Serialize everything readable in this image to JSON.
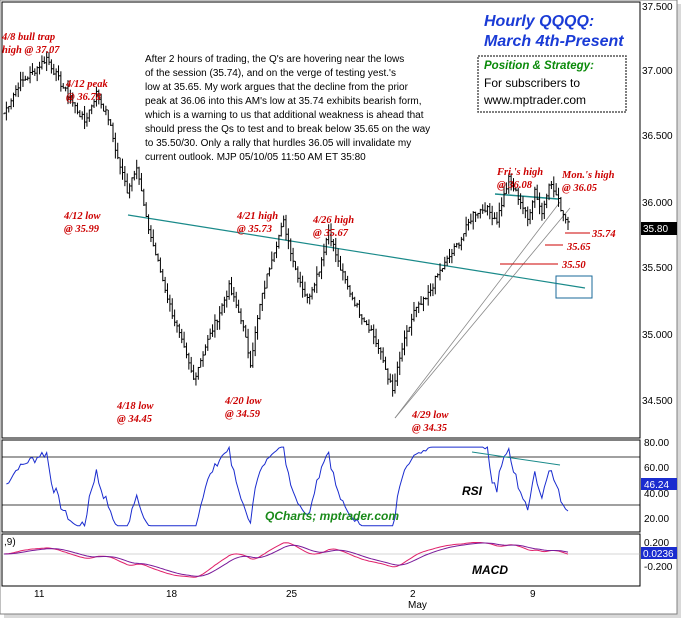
{
  "chart_data": {
    "type": "candlestick",
    "title": "Hourly QQQQ:",
    "subtitle": "March 4th-Present",
    "position_box": {
      "heading": "Position & Strategy:",
      "line1": "For subscribers to",
      "line2": "www.mptrader.com"
    },
    "commentary": [
      "After 2 hours of trading, the Q's are hovering near the lows",
      "of the session (35.74), and on the verge of testing yest.'s",
      "low at 35.65. My work argues that the decline from the prior",
      "peak at 36.06 into this AM's low at 35.74 exhibits bearish form,",
      "which is a warning to us that additional weakness is ahead that",
      "should press the Qs to test and to break below 35.65 on the way",
      "to 35.50/30. Only a rally that hurdles 36.05 will invalidate my",
      "current outlook.  MJP 05/10/05 11:50 AM ET 35:80"
    ],
    "y_ticks": [
      "37.500",
      "37.000",
      "36.500",
      "36.000",
      "35.500",
      "35.000",
      "34.500"
    ],
    "ylim": [
      34.25,
      37.5
    ],
    "x_ticks": [
      "11",
      "18",
      "25",
      "2",
      "9"
    ],
    "x_month_label": "May",
    "last_price_label": "35.80",
    "price_path": [
      [
        0,
        36.62
      ],
      [
        6,
        36.85
      ],
      [
        12,
        36.95
      ],
      [
        18,
        37.07
      ],
      [
        24,
        36.86
      ],
      [
        29,
        36.7
      ],
      [
        34,
        36.55
      ],
      [
        39,
        36.78
      ],
      [
        44,
        36.58
      ],
      [
        48,
        36.25
      ],
      [
        52,
        35.99
      ],
      [
        56,
        36.2
      ],
      [
        60,
        35.75
      ],
      [
        65,
        35.4
      ],
      [
        70,
        35.05
      ],
      [
        75,
        34.75
      ],
      [
        80,
        34.45
      ],
      [
        85,
        34.72
      ],
      [
        90,
        34.95
      ],
      [
        95,
        35.2
      ],
      [
        100,
        34.95
      ],
      [
        104,
        34.59
      ],
      [
        108,
        35.05
      ],
      [
        113,
        35.45
      ],
      [
        118,
        35.73
      ],
      [
        123,
        35.35
      ],
      [
        128,
        35.1
      ],
      [
        133,
        35.35
      ],
      [
        137,
        35.67
      ],
      [
        141,
        35.4
      ],
      [
        145,
        35.2
      ],
      [
        150,
        35.0
      ],
      [
        155,
        34.85
      ],
      [
        160,
        34.6
      ],
      [
        164,
        34.35
      ],
      [
        168,
        34.7
      ],
      [
        173,
        35.0
      ],
      [
        178,
        35.1
      ],
      [
        183,
        35.3
      ],
      [
        188,
        35.45
      ],
      [
        193,
        35.6
      ],
      [
        198,
        35.8
      ],
      [
        203,
        35.85
      ],
      [
        208,
        35.75
      ],
      [
        213,
        36.08
      ],
      [
        218,
        35.9
      ],
      [
        221,
        35.75
      ],
      [
        224,
        36.0
      ],
      [
        227,
        35.8
      ],
      [
        230,
        36.06
      ],
      [
        233,
        35.95
      ],
      [
        236,
        35.8
      ],
      [
        238,
        35.74
      ]
    ],
    "annotations": [
      {
        "text": "4/8 bull trap",
        "text2": "high @ 37.07"
      },
      {
        "text": "4/12 peak",
        "text2": "@ 36.78"
      },
      {
        "text": "4/12 low",
        "text2": "@ 35.99"
      },
      {
        "text": "4/18 low",
        "text2": "@ 34.45"
      },
      {
        "text": "4/20 low",
        "text2": "@ 34.59"
      },
      {
        "text": "4/21 high",
        "text2": "@ 35.73"
      },
      {
        "text": "4/26 high",
        "text2": "@ 35.67"
      },
      {
        "text": "4/29 low",
        "text2": "@ 34.35"
      },
      {
        "text": "Fri.'s high",
        "text2": "@ 36.08"
      },
      {
        "text": "Mon.'s high",
        "text2": "@ 36.05"
      }
    ],
    "level_labels": [
      "35.74",
      "35.65",
      "35.50"
    ],
    "rsi": {
      "label": "RSI",
      "ticks": [
        "80.00",
        "60.00",
        "40.00",
        "20.00"
      ],
      "current": "46.24",
      "ylim": [
        10,
        90
      ]
    },
    "macd": {
      "label": "MACD",
      "ticks": [
        "0.200",
        "-0.200"
      ],
      "current": "0.0236",
      "settings_fragment": ",9)"
    },
    "watermark": "QCharts; mptrader.com",
    "colors": {
      "title": "#1a3bd6",
      "annotation": "#cc0000",
      "trendline": "#1a8a8a",
      "rsi_line": "#1a2ccf",
      "macd_line": "#e0206a",
      "signal_line": "#7a1a9a",
      "price_box": "#1a6a9a"
    }
  }
}
